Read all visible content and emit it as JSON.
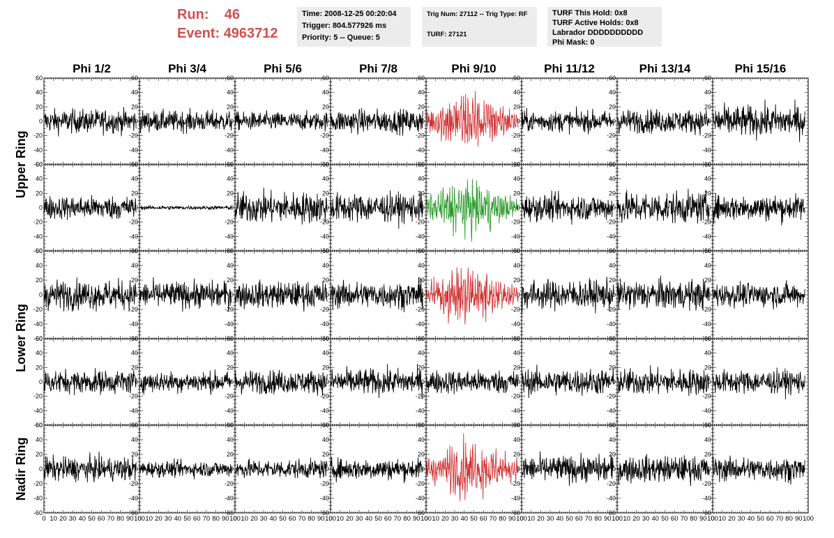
{
  "header": {
    "run_label": "Run:",
    "run_value": "46",
    "event_label": "Event:",
    "event_value": "4963712"
  },
  "info_boxes": {
    "time": "Time: 2008-12-25 00:20:04",
    "trigger": "Trigger: 804.577926 ms",
    "priority": "Priority: 5 -- Queue: 5",
    "trig_num": "Trig Num: 27112 -- Trig Type: RF",
    "turf": "TURF: 27121",
    "turf_this_hold": "TURF This Hold: 0x8",
    "turf_active_holds": "TURF Active Holds: 0x8",
    "labrador": "Labrador DDDDDDDDDD",
    "phi_mask": "Phi Mask: 0"
  },
  "chart_data": {
    "type": "line",
    "columns": [
      "Phi 1/2",
      "Phi 3/4",
      "Phi 5/6",
      "Phi 7/8",
      "Phi 9/10",
      "Phi 11/12",
      "Phi 13/14",
      "Phi 15/16"
    ],
    "rows": [
      "Upper Ring",
      "Lower Ring",
      "Nadir Ring"
    ],
    "xlim": [
      0,
      100
    ],
    "ylim": [
      -60,
      60
    ],
    "x_ticks": [
      "0",
      "10",
      "20",
      "30",
      "40",
      "50",
      "60",
      "70",
      "80",
      "90",
      "100"
    ],
    "y_ticks": [
      "60",
      "40",
      "20",
      "0",
      "-20",
      "-40",
      "-60"
    ],
    "colors": {
      "normal": "#000000",
      "triggered": "#d03030",
      "triggered_alt": "#2a9a2a"
    },
    "panels": [
      {
        "row": 0,
        "col": 0,
        "amplitude": 18,
        "color": "normal"
      },
      {
        "row": 0,
        "col": 1,
        "amplitude": 16,
        "color": "normal"
      },
      {
        "row": 0,
        "col": 2,
        "amplitude": 14,
        "color": "normal"
      },
      {
        "row": 0,
        "col": 3,
        "amplitude": 18,
        "color": "normal"
      },
      {
        "row": 0,
        "col": 4,
        "amplitude": 32,
        "color": "triggered"
      },
      {
        "row": 0,
        "col": 5,
        "amplitude": 16,
        "color": "normal"
      },
      {
        "row": 0,
        "col": 6,
        "amplitude": 18,
        "color": "normal"
      },
      {
        "row": 0,
        "col": 7,
        "amplitude": 24,
        "color": "normal"
      },
      {
        "row": 1,
        "col": 0,
        "amplitude": 18,
        "color": "normal"
      },
      {
        "row": 1,
        "col": 1,
        "amplitude": 3,
        "color": "normal"
      },
      {
        "row": 1,
        "col": 2,
        "amplitude": 24,
        "color": "normal"
      },
      {
        "row": 1,
        "col": 3,
        "amplitude": 22,
        "color": "normal"
      },
      {
        "row": 1,
        "col": 4,
        "amplitude": 28,
        "color": "triggered_alt"
      },
      {
        "row": 1,
        "col": 5,
        "amplitude": 20,
        "color": "normal"
      },
      {
        "row": 1,
        "col": 6,
        "amplitude": 24,
        "color": "normal"
      },
      {
        "row": 1,
        "col": 7,
        "amplitude": 20,
        "color": "normal"
      },
      {
        "row": 2,
        "col": 0,
        "amplitude": 22,
        "color": "normal"
      },
      {
        "row": 2,
        "col": 1,
        "amplitude": 20,
        "color": "normal"
      },
      {
        "row": 2,
        "col": 2,
        "amplitude": 20,
        "color": "normal"
      },
      {
        "row": 2,
        "col": 3,
        "amplitude": 20,
        "color": "normal"
      },
      {
        "row": 2,
        "col": 4,
        "amplitude": 30,
        "color": "triggered"
      },
      {
        "row": 2,
        "col": 5,
        "amplitude": 22,
        "color": "normal"
      },
      {
        "row": 2,
        "col": 6,
        "amplitude": 22,
        "color": "normal"
      },
      {
        "row": 2,
        "col": 7,
        "amplitude": 18,
        "color": "normal"
      },
      {
        "row": 3,
        "col": 0,
        "amplitude": 18,
        "color": "normal"
      },
      {
        "row": 3,
        "col": 1,
        "amplitude": 16,
        "color": "normal"
      },
      {
        "row": 3,
        "col": 2,
        "amplitude": 18,
        "color": "normal"
      },
      {
        "row": 3,
        "col": 3,
        "amplitude": 20,
        "color": "normal"
      },
      {
        "row": 3,
        "col": 4,
        "amplitude": 18,
        "color": "normal"
      },
      {
        "row": 3,
        "col": 5,
        "amplitude": 20,
        "color": "normal"
      },
      {
        "row": 3,
        "col": 6,
        "amplitude": 20,
        "color": "normal"
      },
      {
        "row": 3,
        "col": 7,
        "amplitude": 18,
        "color": "normal"
      },
      {
        "row": 4,
        "col": 0,
        "amplitude": 18,
        "color": "normal"
      },
      {
        "row": 4,
        "col": 1,
        "amplitude": 12,
        "color": "normal"
      },
      {
        "row": 4,
        "col": 2,
        "amplitude": 14,
        "color": "normal"
      },
      {
        "row": 4,
        "col": 3,
        "amplitude": 16,
        "color": "normal"
      },
      {
        "row": 4,
        "col": 4,
        "amplitude": 28,
        "color": "triggered"
      },
      {
        "row": 4,
        "col": 5,
        "amplitude": 20,
        "color": "normal"
      },
      {
        "row": 4,
        "col": 6,
        "amplitude": 20,
        "color": "normal"
      },
      {
        "row": 4,
        "col": 7,
        "amplitude": 18,
        "color": "normal"
      }
    ]
  }
}
